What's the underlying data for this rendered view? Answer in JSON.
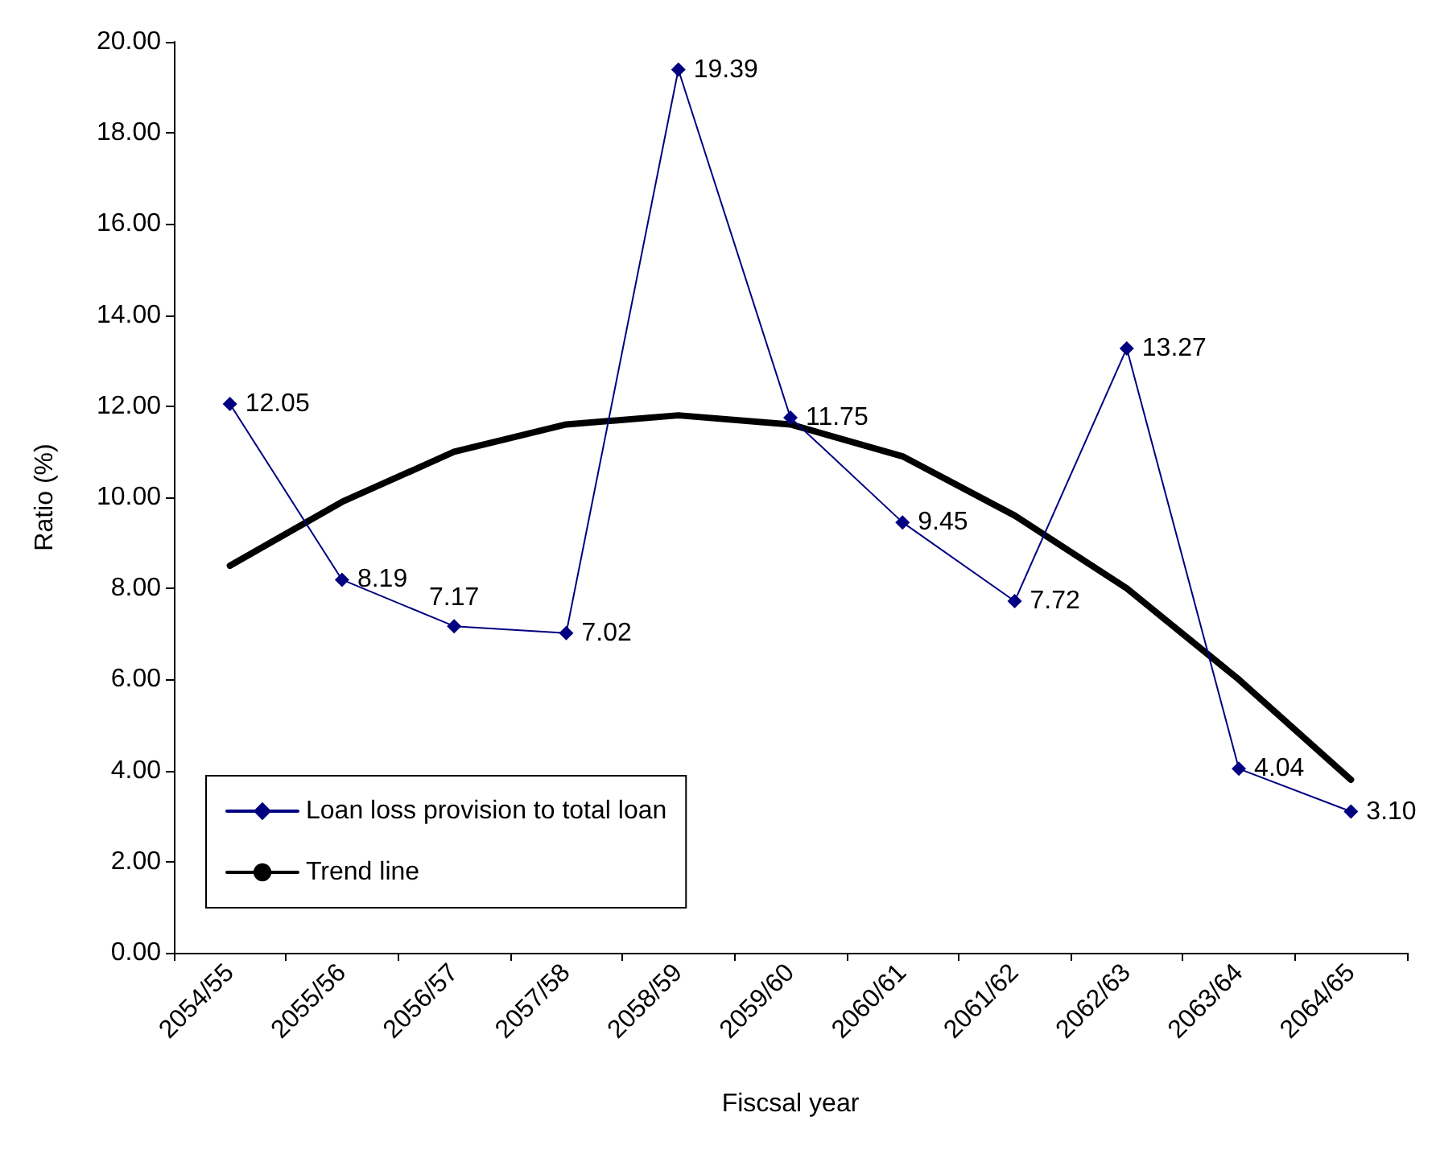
{
  "chart_data": {
    "type": "line",
    "xlabel": "Fiscsal year",
    "ylabel": "Ratio (%)",
    "categories": [
      "2054/55",
      "2055/56",
      "2056/57",
      "2057/58",
      "2058/59",
      "2059/60",
      "2060/61",
      "2061/62",
      "2062/63",
      "2063/64",
      "2064/65"
    ],
    "series": [
      {
        "name": "Loan loss provision to total loan",
        "color": "#000080",
        "marker": "diamond",
        "line_style": "solid",
        "values": [
          12.05,
          8.19,
          7.17,
          7.02,
          19.39,
          11.75,
          9.45,
          7.72,
          13.27,
          4.04,
          3.1
        ],
        "value_labels": [
          "12.05",
          "8.19",
          "7.17",
          "7.02",
          "19.39",
          "11.75",
          "9.45",
          "7.72",
          "13.27",
          "4.04",
          "3.10"
        ]
      },
      {
        "name": "Trend line",
        "color": "#000000",
        "marker": "none",
        "line_style": "solid",
        "values": [
          8.5,
          9.9,
          11.0,
          11.6,
          11.8,
          11.6,
          10.9,
          9.6,
          8.0,
          6.0,
          3.8
        ]
      }
    ],
    "ylim": [
      0,
      20
    ],
    "yticks": [
      {
        "value": 0,
        "label": "0.00"
      },
      {
        "value": 2,
        "label": "2.00"
      },
      {
        "value": 4,
        "label": "4.00"
      },
      {
        "value": 6,
        "label": "6.00"
      },
      {
        "value": 8,
        "label": "8.00"
      },
      {
        "value": 10,
        "label": "10.00"
      },
      {
        "value": 12,
        "label": "12.00"
      },
      {
        "value": 14,
        "label": "14.00"
      },
      {
        "value": 16,
        "label": "16.00"
      },
      {
        "value": 18,
        "label": "18.00"
      },
      {
        "value": 20,
        "label": "20.00"
      }
    ],
    "grid": false,
    "legend": "bottom left"
  }
}
